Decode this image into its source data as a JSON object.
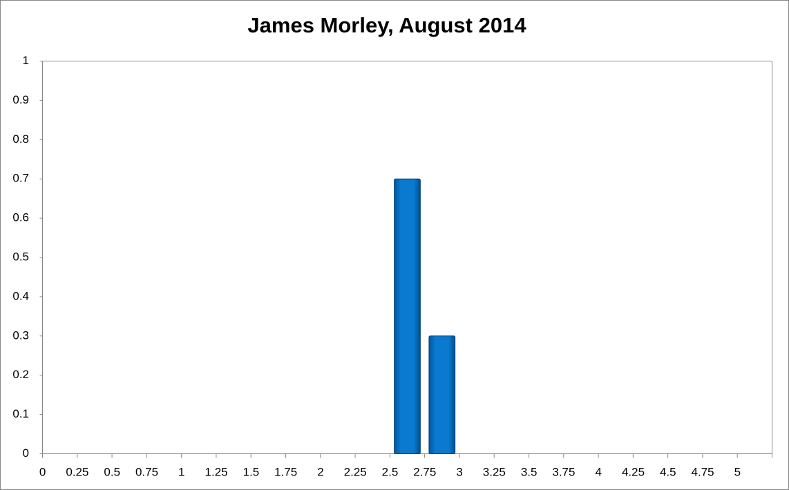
{
  "chart_data": {
    "type": "bar",
    "title": "James Morley, August 2014",
    "categories": [
      "0",
      "0.25",
      "0.5",
      "0.75",
      "1",
      "1.25",
      "1.5",
      "1.75",
      "2",
      "2.25",
      "2.5",
      "2.75",
      "3",
      "3.25",
      "3.5",
      "3.75",
      "4",
      "4.25",
      "4.5",
      "4.75",
      "5"
    ],
    "values": [
      0,
      0,
      0,
      0,
      0,
      0,
      0,
      0,
      0,
      0,
      0.7,
      0.3,
      0,
      0,
      0,
      0,
      0,
      0,
      0,
      0,
      0
    ],
    "color": "#0070c0",
    "ylim": [
      0,
      1
    ],
    "yticks": [
      0,
      0.1,
      0.2,
      0.3,
      0.4,
      0.5,
      0.6,
      0.7,
      0.8,
      0.9,
      1
    ],
    "grid": false
  }
}
